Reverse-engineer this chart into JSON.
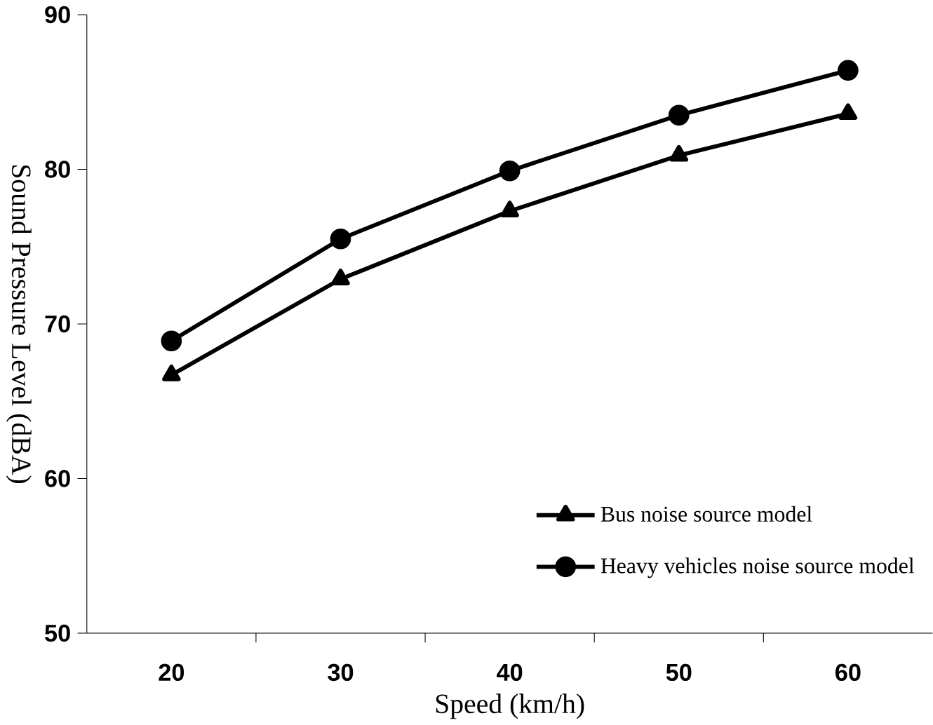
{
  "chart_data": {
    "type": "line",
    "xlabel": "Speed (km/h)",
    "ylabel": "Sound Pressure Level (dBA)",
    "categories": [
      "20",
      "30",
      "40",
      "50",
      "60"
    ],
    "series": [
      {
        "name": "Bus noise source model",
        "color": "#000000",
        "marker": "triangle",
        "values": [
          66.7,
          72.9,
          77.3,
          80.9,
          83.6
        ]
      },
      {
        "name": "Heavy vehicles noise source model",
        "color": "#000000",
        "marker": "circle",
        "values": [
          68.9,
          75.5,
          79.9,
          83.5,
          86.4
        ]
      }
    ],
    "ylim": [
      50,
      90
    ],
    "yticks": [
      50,
      60,
      70,
      80,
      90
    ],
    "legend": "bottom right",
    "grid": false,
    "line_style": "solid"
  }
}
